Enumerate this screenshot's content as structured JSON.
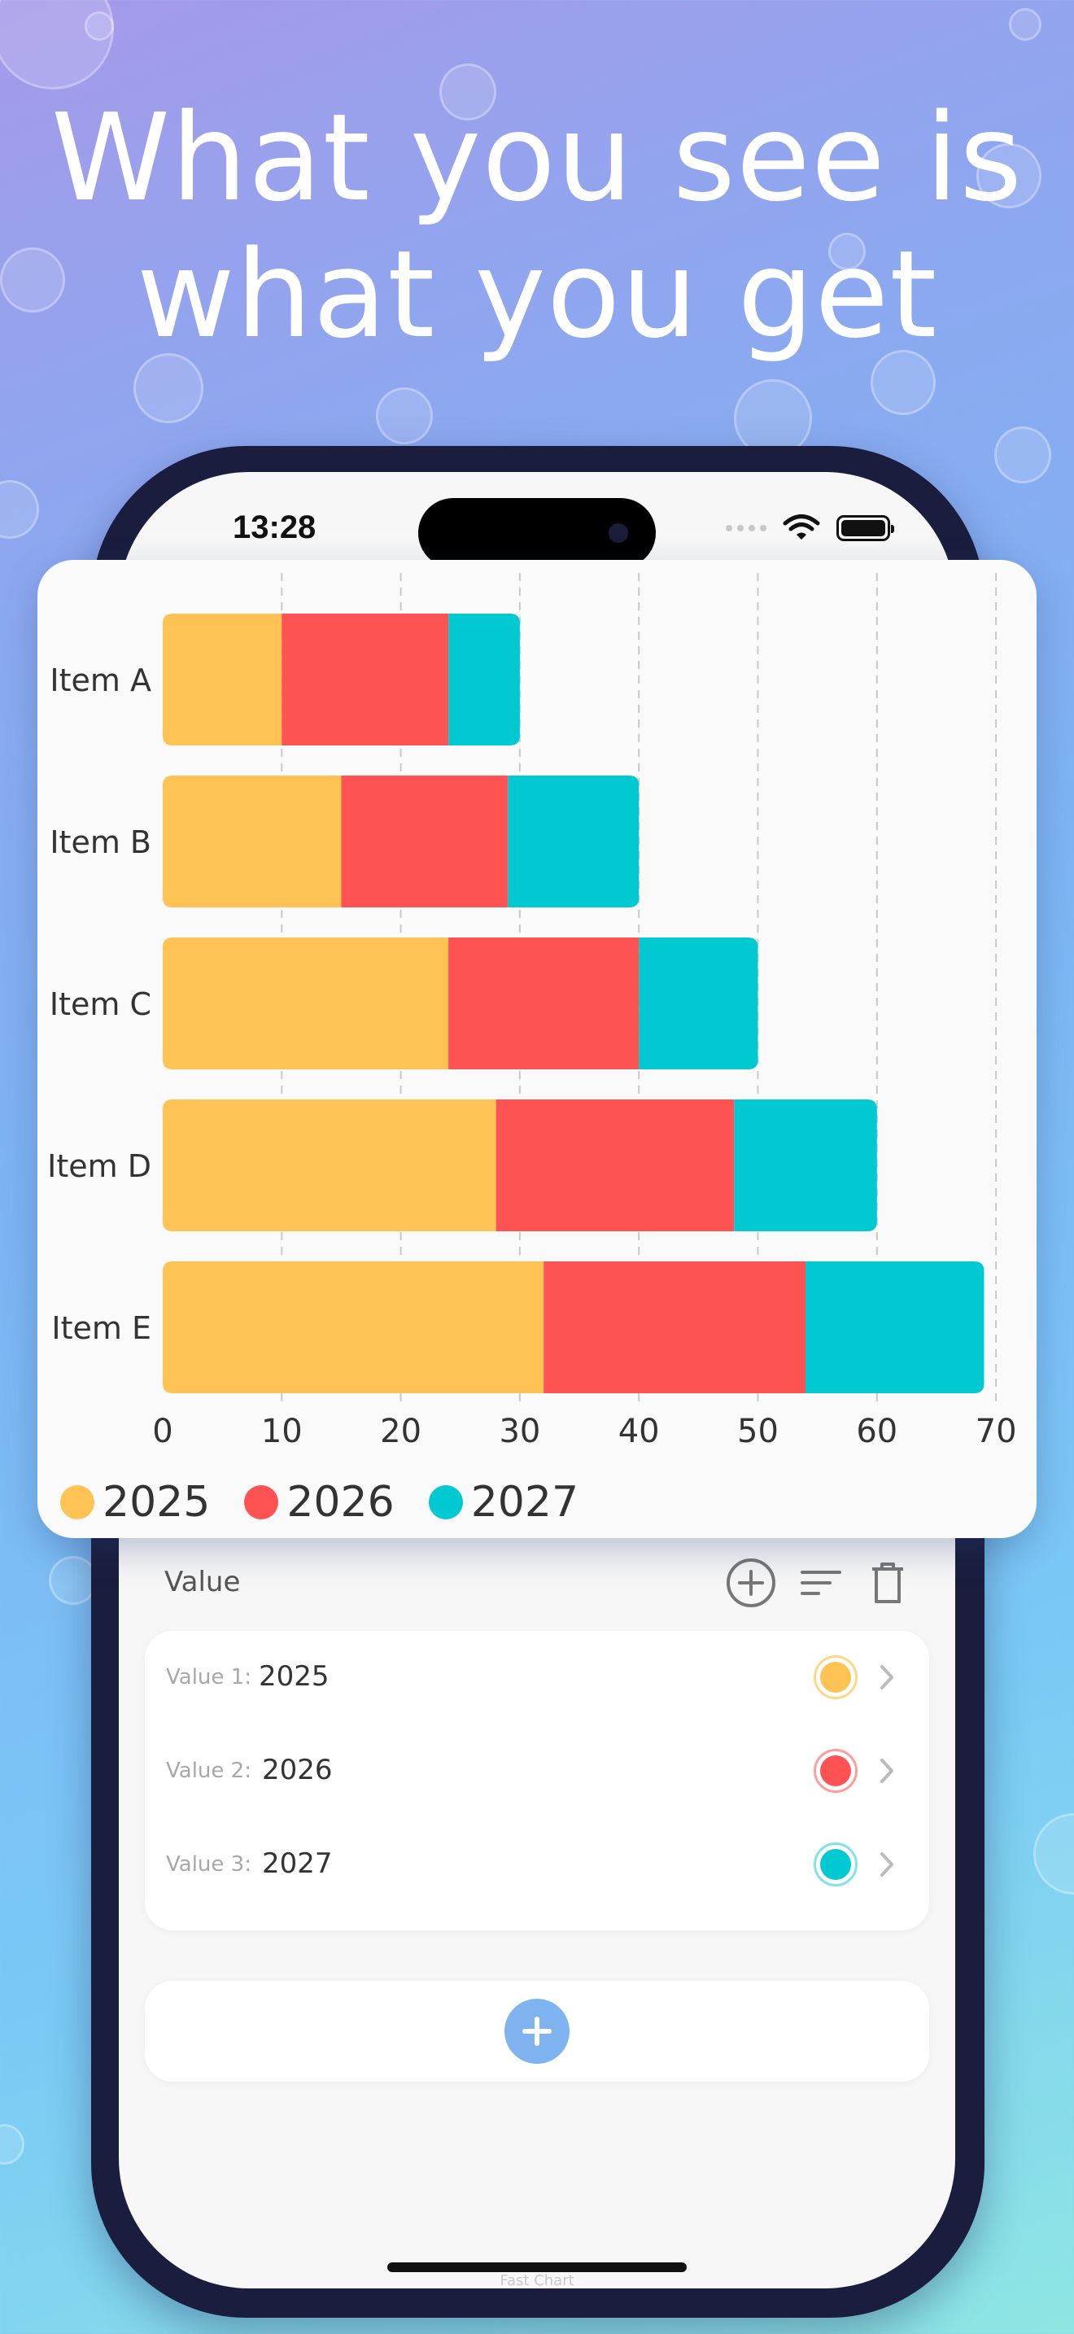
{
  "headline": {
    "line1": "What you see is",
    "line2": "what you get"
  },
  "status_bar": {
    "time": "13:28"
  },
  "chart_data": {
    "type": "bar",
    "orientation": "horizontal",
    "stacked": true,
    "categories": [
      "Item A",
      "Item B",
      "Item C",
      "Item D",
      "Item E"
    ],
    "series": [
      {
        "name": "2025",
        "color": "#ffc254",
        "values": [
          10,
          15,
          24,
          28,
          32
        ]
      },
      {
        "name": "2026",
        "color": "#ff5252",
        "values": [
          14,
          14,
          16,
          20,
          22
        ]
      },
      {
        "name": "2027",
        "color": "#00c9d2",
        "values": [
          6,
          11,
          10,
          12,
          15
        ]
      }
    ],
    "xlim": [
      0,
      70
    ],
    "xticks": [
      "0",
      "10",
      "20",
      "30",
      "40",
      "50",
      "60",
      "70"
    ],
    "grid": "vertical-dashed",
    "legend": "bottom-left"
  },
  "value_section": {
    "title": "Value",
    "rows": [
      {
        "label": "Value 1:",
        "value": "2025",
        "color": "#ffc254"
      },
      {
        "label": "Value 2:",
        "value": "2026",
        "color": "#ff5252"
      },
      {
        "label": "Value 3:",
        "value": "2027",
        "color": "#00c9d2"
      }
    ]
  },
  "footer": {
    "app_name": "Fast Chart"
  },
  "icons": {
    "add": "plus-circle-icon",
    "sort": "sort-lines-icon",
    "delete": "trash-icon",
    "chevron": "chevron-right-icon"
  }
}
